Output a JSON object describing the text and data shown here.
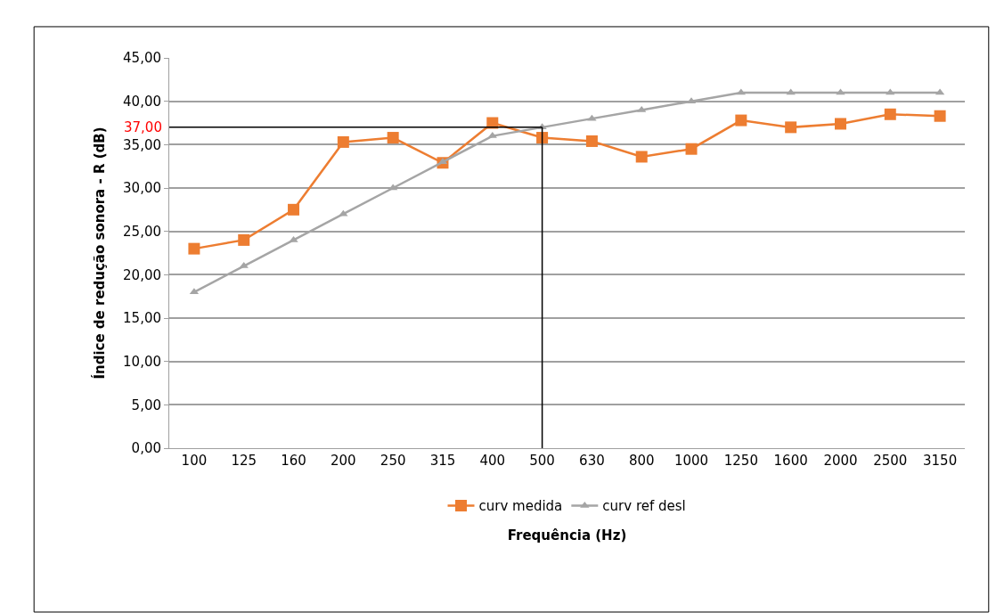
{
  "chart_data": {
    "type": "line",
    "xlabel": "Frequência (Hz)",
    "ylabel": "Índice de redução sonora - R (dB)",
    "categories": [
      "100",
      "125",
      "160",
      "200",
      "250",
      "315",
      "400",
      "500",
      "630",
      "800",
      "1000",
      "1250",
      "1600",
      "2000",
      "2500",
      "3150"
    ],
    "series": [
      {
        "name": "curv medida",
        "color": "#ed7d31",
        "marker": "square",
        "values": [
          23.0,
          24.0,
          27.5,
          35.3,
          35.8,
          32.9,
          37.5,
          35.8,
          35.4,
          33.6,
          34.5,
          37.8,
          37.0,
          37.4,
          38.5,
          38.3
        ]
      },
      {
        "name": "curv ref desl",
        "color": "#a5a5a5",
        "marker": "triangle",
        "values": [
          18,
          21,
          24,
          27,
          30,
          33,
          36,
          37,
          38,
          39,
          40,
          41,
          41,
          41,
          41,
          41
        ]
      }
    ],
    "ylim": [
      0,
      45
    ],
    "yticks": [
      {
        "value": 0,
        "label": "0,00"
      },
      {
        "value": 5,
        "label": "5,00"
      },
      {
        "value": 10,
        "label": "10,00"
      },
      {
        "value": 15,
        "label": "15,00"
      },
      {
        "value": 20,
        "label": "20,00"
      },
      {
        "value": 25,
        "label": "25,00"
      },
      {
        "value": 30,
        "label": "30,00"
      },
      {
        "value": 35,
        "label": "35,00"
      },
      {
        "value": 40,
        "label": "40,00"
      },
      {
        "value": 45,
        "label": "45,00"
      }
    ],
    "ref_lines": [
      {
        "axis": "y",
        "value": 37,
        "label": "37,00",
        "color": "#000000"
      },
      {
        "axis": "x",
        "value": "500",
        "color": "#000000"
      }
    ],
    "grid": "y",
    "legend": "bottom",
    "line_style": "solid"
  }
}
